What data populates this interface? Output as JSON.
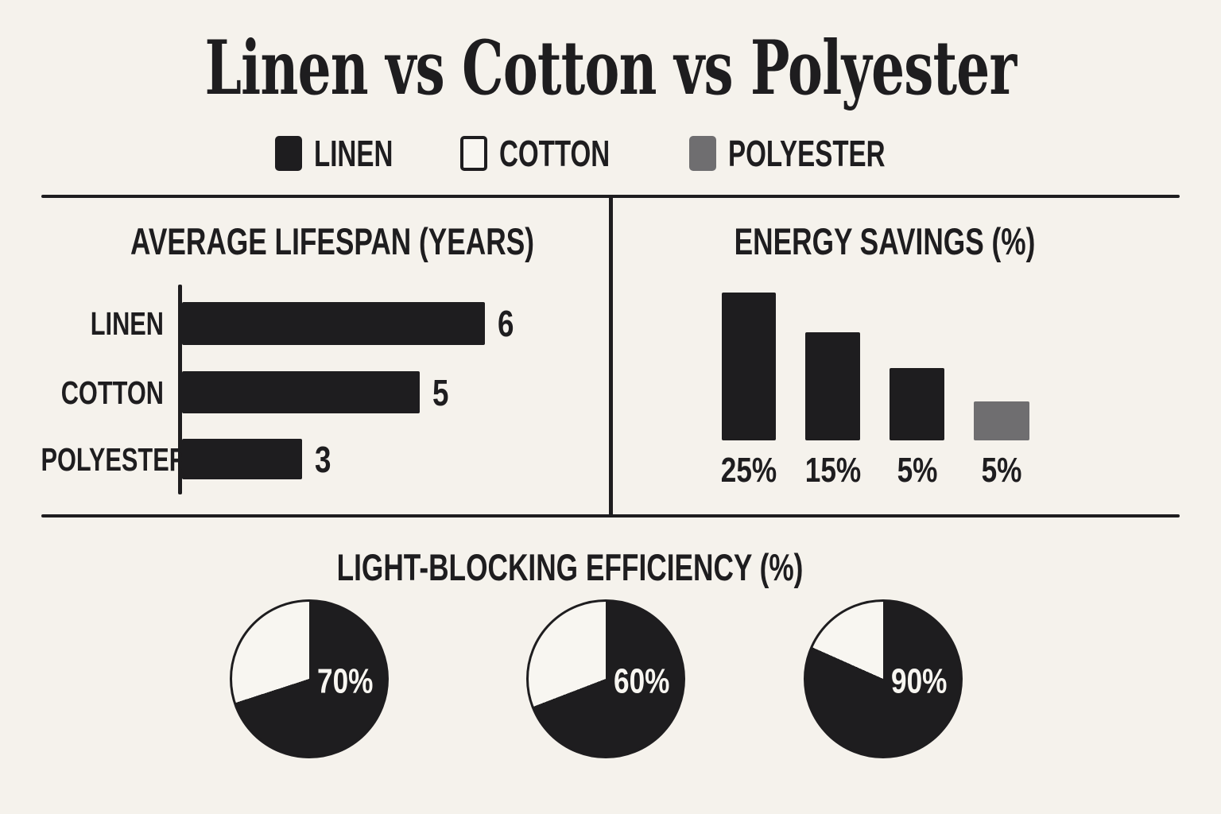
{
  "page": {
    "title": "Linen vs Cotton vs Polyester",
    "colors": {
      "background": "#f5f2ec",
      "ink": "#1e1d1f",
      "gray": "#6f6e70",
      "paper_white": "#f8f6f1"
    }
  },
  "legend": {
    "items": [
      {
        "label": "LINEN",
        "swatch": "filled-black",
        "color": "#1e1d1f"
      },
      {
        "label": "COTTON",
        "swatch": "outline-white",
        "color": "#f8f6f1"
      },
      {
        "label": "POLYESTER",
        "swatch": "filled-gray",
        "color": "#6f6e70"
      }
    ]
  },
  "chart_data": [
    {
      "id": "lifespan",
      "type": "bar",
      "orientation": "horizontal",
      "title": "AVERAGE LIFESPAN (YEARS)",
      "categories": [
        "LINEN",
        "COTTON",
        "POLYESTER"
      ],
      "values": [
        6,
        5,
        3
      ],
      "value_labels": [
        "6",
        "5",
        "3"
      ],
      "xlim": [
        0,
        6
      ],
      "grid": false,
      "bar_colors": [
        "#1e1d1f",
        "#1e1d1f",
        "#1e1d1f"
      ],
      "visual_length_frac": [
        1.0,
        0.785,
        0.396
      ]
    },
    {
      "id": "energy",
      "type": "bar",
      "orientation": "vertical",
      "title": "ENERGY SAVINGS (%)",
      "values": [
        25,
        15,
        5,
        5
      ],
      "value_labels": [
        "25%",
        "15%",
        "5%",
        "5%"
      ],
      "value_label_position": "below-bar",
      "grid": false,
      "bar_colors": [
        "#1e1d1f",
        "#1e1d1f",
        "#1e1d1f",
        "#6f6e70"
      ],
      "visual_height_frac": [
        1.0,
        0.731,
        0.489,
        0.263
      ]
    },
    {
      "id": "light_blocking",
      "type": "pie",
      "title": "LIGHT-BLOCKING EFFICIENCY (%)",
      "start_angle_deg": 0,
      "direction": "clockwise",
      "slice_color": "#1e1d1f",
      "remainder_color": "#f8f6f1",
      "label_color": "#f8f6f1",
      "pies": [
        {
          "label": "70%",
          "value": 70,
          "visual_sweep_deg": 252
        },
        {
          "label": "60%",
          "value": 60,
          "visual_sweep_deg": 249
        },
        {
          "label": "90%",
          "value": 90,
          "visual_sweep_deg": 294
        }
      ]
    }
  ]
}
